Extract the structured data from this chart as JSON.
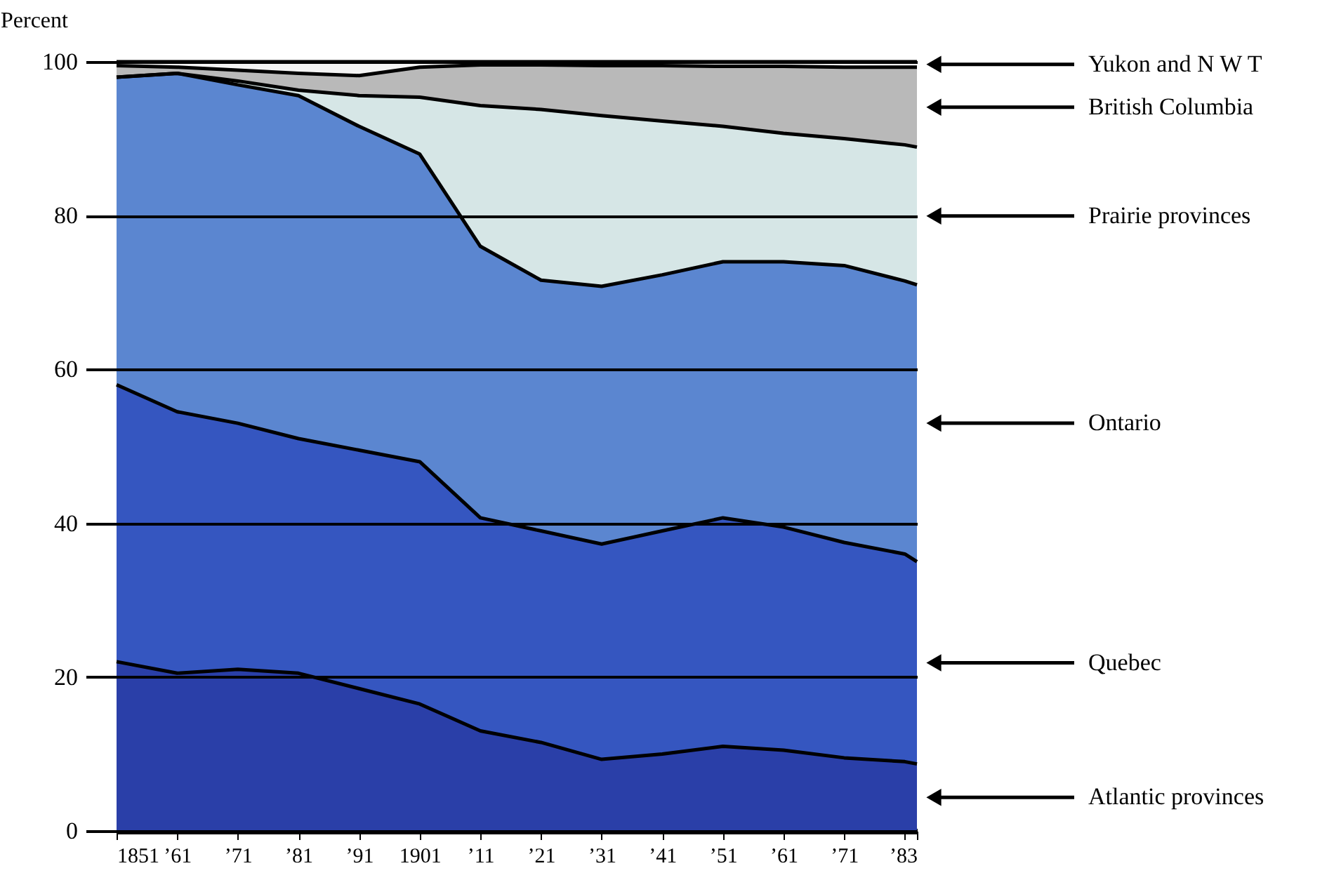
{
  "chart_data": {
    "type": "area",
    "stacked": true,
    "ylabel": "Percent",
    "x": [
      1851,
      1861,
      1871,
      1881,
      1891,
      1901,
      1911,
      1921,
      1931,
      1941,
      1951,
      1961,
      1971,
      1981,
      1983
    ],
    "series": [
      {
        "name": "Atlantic provinces",
        "color": "#2a3fa8",
        "values": [
          22,
          20.5,
          21,
          20.5,
          18.5,
          16.5,
          13,
          11.5,
          9.3,
          10,
          11,
          10.5,
          9.5,
          9,
          8.7
        ]
      },
      {
        "name": "Quebec",
        "color": "#3556c0",
        "values": [
          36,
          34,
          32,
          30.5,
          31,
          31.5,
          27.7,
          27.5,
          28,
          29,
          29.7,
          29,
          28,
          27,
          26.3
        ]
      },
      {
        "name": "Ontario",
        "color": "#5b86d0",
        "values": [
          40,
          44,
          44,
          44.6,
          42.1,
          40,
          35.3,
          32.6,
          33.5,
          33.3,
          33.3,
          34.5,
          36,
          35.5,
          36
        ]
      },
      {
        "name": "Prairie provinces",
        "color": "#d6e6e6",
        "values": [
          0,
          0,
          0.5,
          0.7,
          4,
          7.4,
          18.3,
          22.2,
          22.2,
          20,
          17.6,
          16.7,
          16.5,
          17.7,
          17.9
        ]
      },
      {
        "name": "British Columbia",
        "color": "#b9b9b9",
        "values": [
          1.5,
          0.8,
          1.4,
          2.2,
          2.6,
          3.9,
          5.3,
          5.8,
          6.5,
          7.2,
          7.8,
          8.7,
          9.3,
          10.1,
          10.4
        ]
      },
      {
        "name": "Yukon and N W T",
        "color": "#f4f4f4",
        "values": [
          0.5,
          0.7,
          1.1,
          1.5,
          1.8,
          0.7,
          0.4,
          0.4,
          0.5,
          0.5,
          0.6,
          0.6,
          0.7,
          0.7,
          0.7
        ]
      }
    ],
    "xlim": [
      1851,
      1983
    ],
    "xticks": [
      1851,
      {
        "value": 1861,
        "label": "’61"
      },
      {
        "value": 1871,
        "label": "’71"
      },
      {
        "value": 1881,
        "label": "’81"
      },
      {
        "value": 1891,
        "label": "’91"
      },
      1901,
      {
        "value": 1911,
        "label": "’11"
      },
      {
        "value": 1921,
        "label": "’21"
      },
      {
        "value": 1931,
        "label": "’31"
      },
      {
        "value": 1941,
        "label": "’41"
      },
      {
        "value": 1951,
        "label": "’51"
      },
      {
        "value": 1961,
        "label": "’61"
      },
      {
        "value": 1971,
        "label": "’71"
      },
      {
        "value": 1981,
        "label": null
      },
      {
        "value": 1983,
        "label": "’83"
      }
    ],
    "ylim": [
      0,
      100
    ],
    "yticks": [
      0,
      20,
      40,
      60,
      80,
      100
    ],
    "grid": "y",
    "legend": false
  }
}
